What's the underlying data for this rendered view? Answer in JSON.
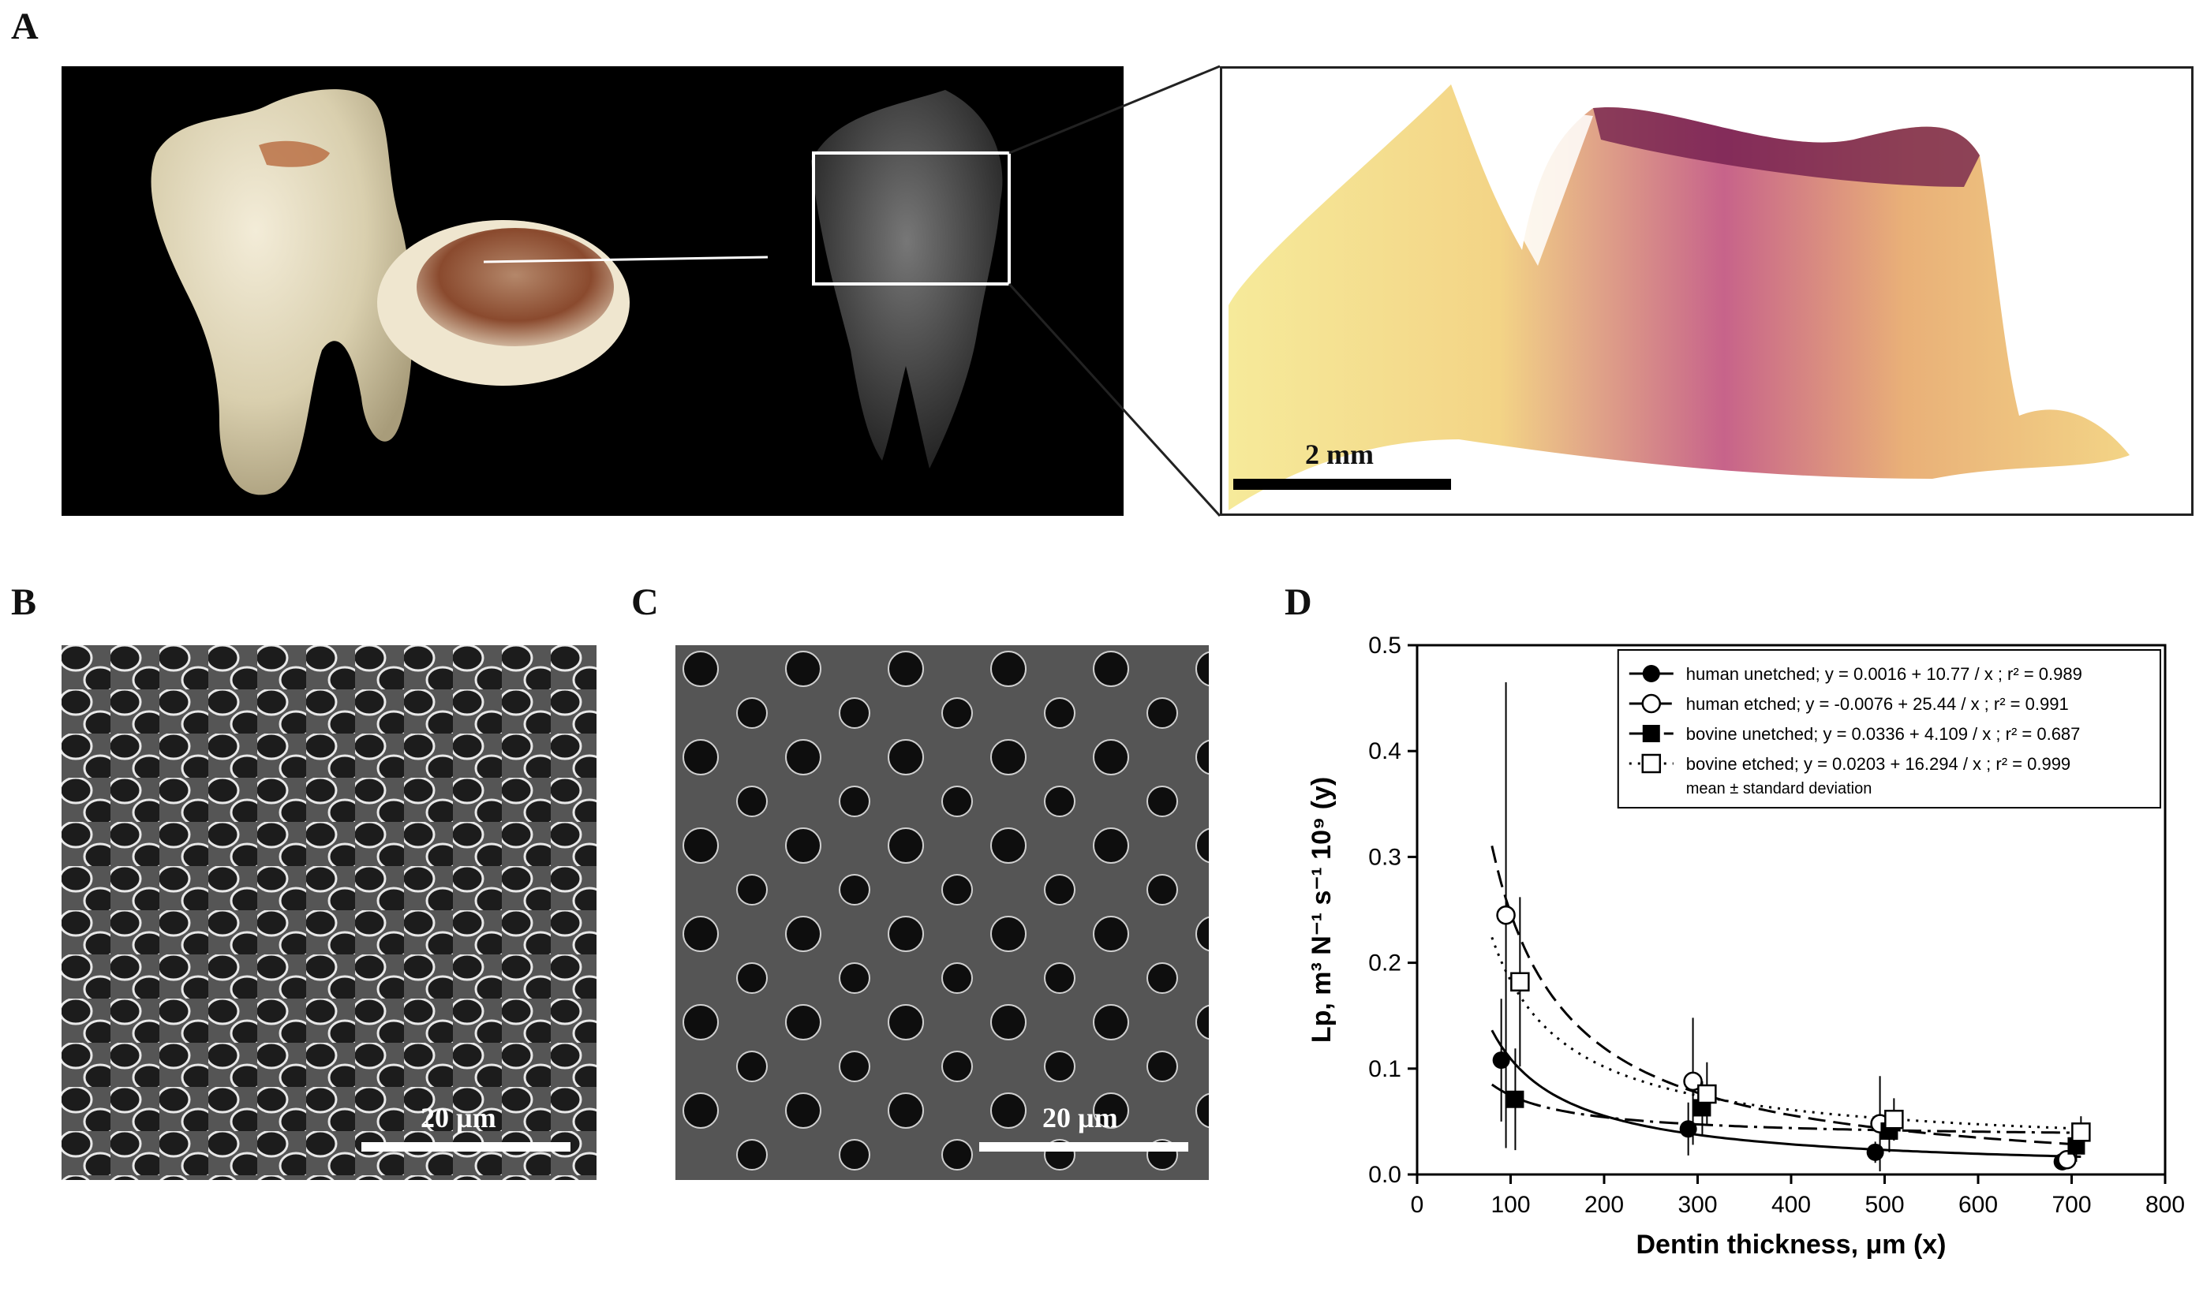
{
  "panels": {
    "a": {
      "letter": "A",
      "scale_label": "2 mm"
    },
    "b": {
      "letter": "B",
      "scale_label": "20 µm"
    },
    "c": {
      "letter": "C",
      "scale_label": "20 µm"
    },
    "d": {
      "letter": "D"
    }
  },
  "chart_data": {
    "type": "scatter",
    "xlabel": "Dentin thickness, μm (x)",
    "ylabel": "Lp, m³ N⁻¹ s⁻¹ 10⁹ (y)",
    "xlim": [
      0,
      800
    ],
    "ylim": [
      0,
      0.5
    ],
    "xticks": [
      0,
      100,
      200,
      300,
      400,
      500,
      600,
      700,
      800
    ],
    "yticks": [
      0.0,
      0.1,
      0.2,
      0.3,
      0.4,
      0.5
    ],
    "legend_position": "top-right",
    "legend_note": "mean ± standard deviation",
    "series": [
      {
        "name": "human unetched; y = 0.0016 + 10.77 / x ; r² = 0.989",
        "marker": "filled-circle",
        "line": "solid",
        "fit": {
          "a": 0.0016,
          "b": 10.77
        },
        "x": [
          90,
          290,
          490,
          690
        ],
        "y": [
          0.108,
          0.043,
          0.021,
          0.012
        ],
        "err": [
          0.058,
          0.025,
          0.01,
          0.007
        ]
      },
      {
        "name": "human etched; y = -0.0076 + 25.44 / x ; r² = 0.991",
        "marker": "open-circle",
        "line": "long-dash",
        "fit": {
          "a": -0.0076,
          "b": 25.44
        },
        "x": [
          95,
          295,
          495,
          695
        ],
        "y": [
          0.245,
          0.088,
          0.048,
          0.014
        ],
        "err": [
          0.22,
          0.06,
          0.045,
          0.008
        ]
      },
      {
        "name": "bovine unetched; y = 0.0336 + 4.109 / x ; r² = 0.687",
        "marker": "filled-square",
        "line": "dash-dot",
        "fit": {
          "a": 0.0336,
          "b": 4.109
        },
        "x": [
          105,
          305,
          505,
          705
        ],
        "y": [
          0.071,
          0.063,
          0.041,
          0.027
        ],
        "err": [
          0.048,
          0.025,
          0.02,
          0.015
        ]
      },
      {
        "name": "bovine etched; y = 0.0203 + 16.294 / x ; r² = 0.999",
        "marker": "open-square",
        "line": "dotted",
        "fit": {
          "a": 0.0203,
          "b": 16.294
        },
        "x": [
          110,
          310,
          510,
          710
        ],
        "y": [
          0.182,
          0.076,
          0.052,
          0.04
        ],
        "err": [
          0.08,
          0.03,
          0.02,
          0.015
        ]
      }
    ]
  }
}
